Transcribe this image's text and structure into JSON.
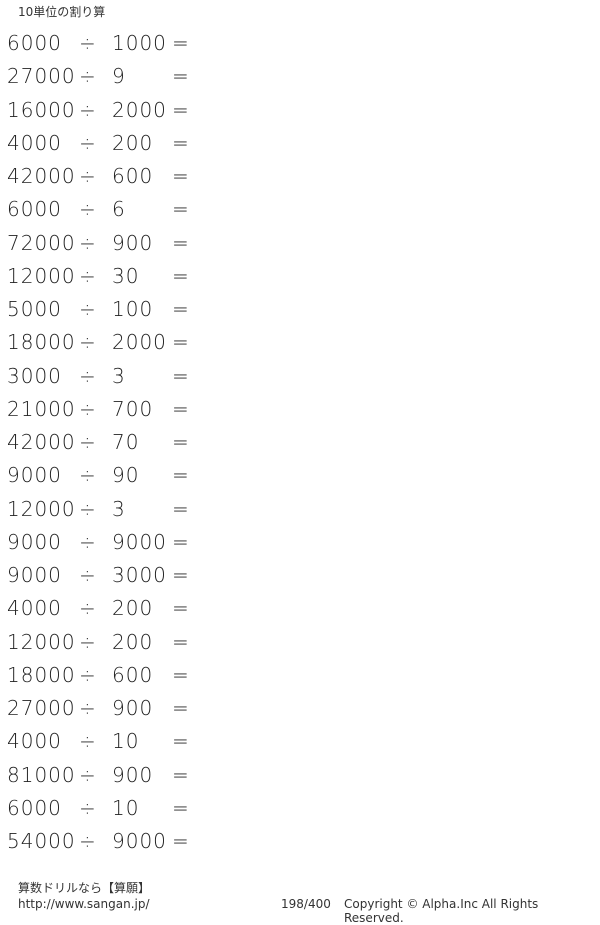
{
  "header": {
    "title": "10単位の割り算"
  },
  "operator": "÷",
  "equals": "=",
  "problems": [
    {
      "a": "6000",
      "b": "1000"
    },
    {
      "a": "27000",
      "b": "9"
    },
    {
      "a": "16000",
      "b": "2000"
    },
    {
      "a": "4000",
      "b": "200"
    },
    {
      "a": "42000",
      "b": "600"
    },
    {
      "a": "6000",
      "b": "6"
    },
    {
      "a": "72000",
      "b": "900"
    },
    {
      "a": "12000",
      "b": "30"
    },
    {
      "a": "5000",
      "b": "100"
    },
    {
      "a": "18000",
      "b": "2000"
    },
    {
      "a": "3000",
      "b": "3"
    },
    {
      "a": "21000",
      "b": "700"
    },
    {
      "a": "42000",
      "b": "70"
    },
    {
      "a": "9000",
      "b": "90"
    },
    {
      "a": "12000",
      "b": "3"
    },
    {
      "a": "9000",
      "b": "9000"
    },
    {
      "a": "9000",
      "b": "3000"
    },
    {
      "a": "4000",
      "b": "200"
    },
    {
      "a": "12000",
      "b": "200"
    },
    {
      "a": "18000",
      "b": "600"
    },
    {
      "a": "27000",
      "b": "900"
    },
    {
      "a": "4000",
      "b": "10"
    },
    {
      "a": "81000",
      "b": "900"
    },
    {
      "a": "6000",
      "b": "10"
    },
    {
      "a": "54000",
      "b": "9000"
    }
  ],
  "footer": {
    "brand": "算数ドリルなら【算願】",
    "url": "http://www.sangan.jp/",
    "page": "198/400",
    "copyright": "Copyright © Alpha.Inc All Rights Reserved."
  }
}
